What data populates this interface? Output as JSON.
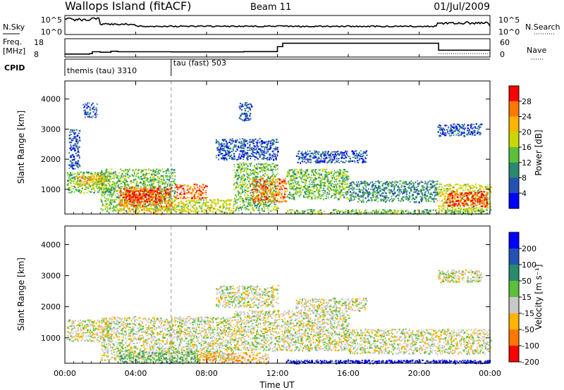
{
  "header": {
    "station": "Wallops Island (fitACF)",
    "beam": "Beam 11",
    "date": "01/Jul/2009"
  },
  "strip": {
    "nsky": {
      "label": "N.Sky",
      "ticks": [
        "10^5",
        "10^0"
      ]
    },
    "nsearch": {
      "label": "N.Search",
      "ticks": [
        "10^5",
        "10^0"
      ]
    },
    "freq": {
      "label_top": "Freq.",
      "label_bottom": "[MHz]",
      "ticks": [
        "18",
        "8"
      ]
    },
    "nave": {
      "label": "Nave",
      "ticks": [
        "60",
        "0"
      ]
    },
    "cpid": {
      "label": "CPID",
      "segments": [
        {
          "name": "themis (tau) 3310",
          "start_hour": 0,
          "end_hour": 6
        },
        {
          "name": "tau (fast) 503",
          "start_hour": 6,
          "end_hour": 24
        }
      ]
    },
    "freq_steps": [
      {
        "t": 0,
        "mhz": 9
      },
      {
        "t": 1.4,
        "mhz": 9.3
      },
      {
        "t": 1.55,
        "mhz": 10.5
      },
      {
        "t": 2.0,
        "mhz": 10.2
      },
      {
        "t": 2.6,
        "mhz": 10.8
      },
      {
        "t": 3.0,
        "mhz": 10.5
      },
      {
        "t": 6.0,
        "mhz": 10.4
      },
      {
        "t": 10.1,
        "mhz": 10.6
      },
      {
        "t": 11.5,
        "mhz": 10.6
      },
      {
        "t": 12.0,
        "mhz": 13.8
      },
      {
        "t": 12.3,
        "mhz": 16.0
      },
      {
        "t": 21.0,
        "mhz": 16.0
      },
      {
        "t": 21.1,
        "mhz": 11.5
      },
      {
        "t": 24,
        "mhz": 11.5
      }
    ],
    "nave_dotted_level": 8
  },
  "chart_data": [
    {
      "type": "heatmap",
      "panel": "power",
      "ylabel": "Slant Range [km]",
      "ylim": [
        180,
        4600
      ],
      "yticks": [
        "1000",
        "2000",
        "3000",
        "4000"
      ],
      "colorbar_label": "Power [dB]",
      "colorbar_ticks": [
        "4",
        "8",
        "12",
        "16",
        "20",
        "24",
        "28"
      ],
      "colorbar_colors": [
        "#0000ff",
        "#2452b4",
        "#2a8a6e",
        "#5cbf3a",
        "#c8d800",
        "#ffb400",
        "#ff7800",
        "#ff0000"
      ],
      "blobs": [
        {
          "t0": 0.1,
          "t1": 2.6,
          "r0": 900,
          "r1": 1600,
          "level": 3
        },
        {
          "t0": 0.6,
          "t1": 2.3,
          "r0": 1150,
          "r1": 1500,
          "level": 5
        },
        {
          "t0": 2.0,
          "t1": 6.2,
          "r0": 300,
          "r1": 1700,
          "level": 3
        },
        {
          "t0": 3.0,
          "t1": 6.0,
          "r0": 450,
          "r1": 1100,
          "level": 6
        },
        {
          "t0": 3.4,
          "t1": 5.4,
          "r0": 600,
          "r1": 1000,
          "level": 7
        },
        {
          "t0": 6.0,
          "t1": 9.5,
          "r0": 220,
          "r1": 700,
          "level": 4
        },
        {
          "t0": 6.2,
          "t1": 8.0,
          "r0": 700,
          "r1": 1200,
          "level": 6
        },
        {
          "t0": 9.5,
          "t1": 12.0,
          "r0": 300,
          "r1": 1900,
          "level": 3
        },
        {
          "t0": 10.5,
          "t1": 12.5,
          "r0": 600,
          "r1": 1400,
          "level": 6
        },
        {
          "t0": 12.5,
          "t1": 16.0,
          "r0": 700,
          "r1": 1700,
          "level": 3
        },
        {
          "t0": 16.0,
          "t1": 21.0,
          "r0": 600,
          "r1": 1300,
          "level": 2
        },
        {
          "t0": 21.0,
          "t1": 24.0,
          "r0": 300,
          "r1": 1200,
          "level": 4
        },
        {
          "t0": 21.5,
          "t1": 23.8,
          "r0": 450,
          "r1": 950,
          "level": 7
        },
        {
          "t0": 3.0,
          "t1": 6.0,
          "r0": 200,
          "r1": 450,
          "level": 5
        },
        {
          "t0": 12.5,
          "t1": 24.0,
          "r0": 200,
          "r1": 350,
          "level": 3
        },
        {
          "t0": 8.5,
          "t1": 12.0,
          "r0": 2000,
          "r1": 2700,
          "level": 1
        },
        {
          "t0": 13.0,
          "t1": 17.0,
          "r0": 1900,
          "r1": 2300,
          "level": 1
        },
        {
          "t0": 21.0,
          "t1": 23.5,
          "r0": 2800,
          "r1": 3200,
          "level": 1
        },
        {
          "t0": 1.0,
          "t1": 1.8,
          "r0": 3400,
          "r1": 3900,
          "level": 1
        },
        {
          "t0": 9.8,
          "t1": 10.5,
          "r0": 3300,
          "r1": 3900,
          "level": 1
        },
        {
          "t0": 0.2,
          "t1": 0.8,
          "r0": 1700,
          "r1": 3000,
          "level": 1
        }
      ]
    },
    {
      "type": "heatmap",
      "panel": "velocity",
      "ylabel": "Slant Range [km]",
      "ylim": [
        180,
        4600
      ],
      "yticks": [
        "1000",
        "2000",
        "3000",
        "4000"
      ],
      "colorbar_label": "Velocity [m s⁻¹]",
      "colorbar_ticks": [
        "200",
        "100",
        "50",
        "15",
        "-15",
        "-50",
        "-100",
        "-200"
      ],
      "colorbar_colors": [
        "#0000ff",
        "#2452b4",
        "#2a8a6e",
        "#5cbf3a",
        "#c8c8c8",
        "#ffb400",
        "#ff7800",
        "#ff0000"
      ],
      "blobs": [
        {
          "t0": 0.1,
          "t1": 2.6,
          "r0": 900,
          "r1": 1600,
          "level": 4
        },
        {
          "t0": 2.0,
          "t1": 9.5,
          "r0": 300,
          "r1": 1700,
          "level": 4
        },
        {
          "t0": 3.0,
          "t1": 7.5,
          "r0": 200,
          "r1": 600,
          "level": 3
        },
        {
          "t0": 7.5,
          "t1": 11.5,
          "r0": 200,
          "r1": 550,
          "level": 5
        },
        {
          "t0": 9.5,
          "t1": 16.0,
          "r0": 600,
          "r1": 1900,
          "level": 4
        },
        {
          "t0": 16.0,
          "t1": 24.0,
          "r0": 500,
          "r1": 1300,
          "level": 4
        },
        {
          "t0": 8.5,
          "t1": 12.0,
          "r0": 2000,
          "r1": 2700,
          "level": 4
        },
        {
          "t0": 13.0,
          "t1": 17.0,
          "r0": 1900,
          "r1": 2300,
          "level": 4
        },
        {
          "t0": 21.0,
          "t1": 23.5,
          "r0": 2800,
          "r1": 3200,
          "level": 4
        },
        {
          "t0": 12.5,
          "t1": 24.0,
          "r0": 200,
          "r1": 300,
          "level": 0
        }
      ]
    }
  ],
  "x_axis": {
    "label": "Time UT",
    "xlim": [
      0,
      24
    ],
    "ticks": [
      "00:00",
      "04:00",
      "08:00",
      "12:00",
      "16:00",
      "20:00",
      "00:00"
    ],
    "minor_step_hours": 0.5
  }
}
